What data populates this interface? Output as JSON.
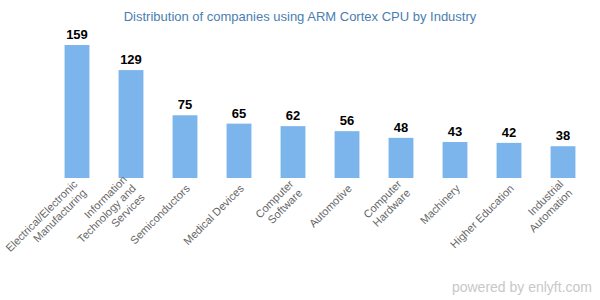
{
  "chart_data": {
    "type": "bar",
    "title": "Distribution of companies using ARM Cortex CPU by Industry",
    "categories": [
      "Electrical/Electronic Manufacturing",
      "Information Technology and Services",
      "Semiconductors",
      "Medical Devices",
      "Computer Software",
      "Automotive",
      "Computer Hardware",
      "Machinery",
      "Higher Education",
      "Industrial Automation"
    ],
    "values": [
      159,
      129,
      75,
      65,
      62,
      56,
      48,
      43,
      42,
      38
    ],
    "color": "#7cb5ec",
    "ylim": [
      0,
      159
    ],
    "grid": false,
    "data_labels": true,
    "tick_labels": "x",
    "annotations": [
      "powered by enlyft.com"
    ]
  }
}
